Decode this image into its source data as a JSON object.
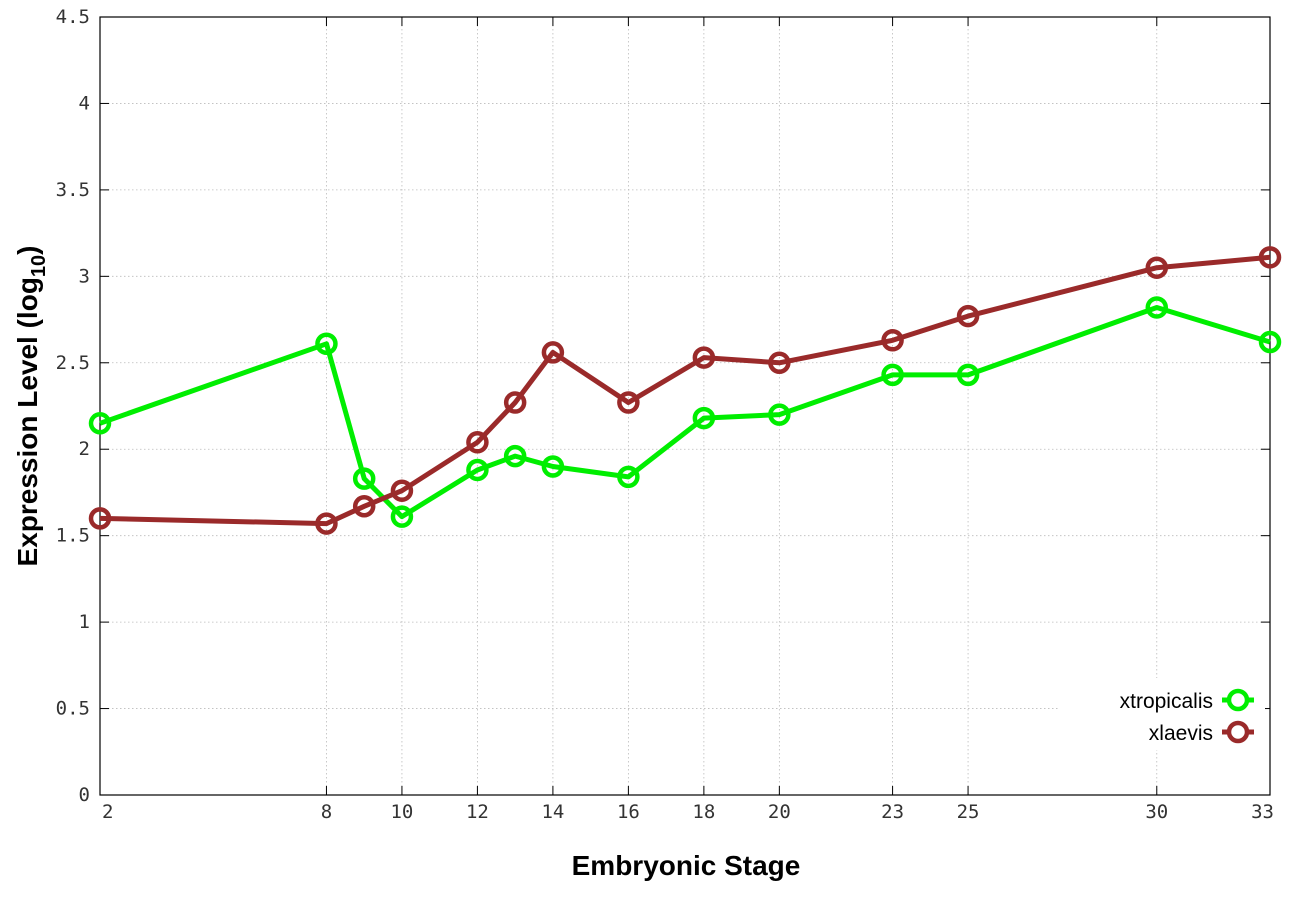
{
  "chart_data": {
    "type": "line",
    "xlabel": "Embryonic Stage",
    "ylabel": "Expression Level (log",
    "ylabel_sub": "10",
    "ylabel_close": ")",
    "x_ticks": [
      "2",
      "8",
      "10",
      "12",
      "14",
      "16",
      "18",
      "20",
      "23",
      "25",
      "30",
      "33"
    ],
    "y_ticks": [
      "0",
      "0.5",
      "1",
      "1.5",
      "2",
      "2.5",
      "3",
      "3.5",
      "4",
      "4.5"
    ],
    "ylim": [
      0,
      4.5
    ],
    "categories": [
      "2",
      "8",
      "9",
      "10",
      "12",
      "13",
      "14",
      "16",
      "18",
      "20",
      "23",
      "25",
      "30",
      "33"
    ],
    "series": [
      {
        "name": "xtropicalis",
        "color": "#00ee00",
        "values": [
          2.15,
          2.61,
          1.83,
          1.61,
          1.88,
          1.96,
          1.9,
          1.84,
          2.18,
          2.2,
          2.43,
          2.43,
          2.82,
          2.62
        ]
      },
      {
        "name": "xlaevis",
        "color": "#9a2a2a",
        "values": [
          1.6,
          1.57,
          1.67,
          1.76,
          2.04,
          2.27,
          2.56,
          2.27,
          2.53,
          2.5,
          2.63,
          2.77,
          3.05,
          3.11
        ]
      }
    ],
    "grid": true,
    "legend_position": "bottom-right"
  }
}
